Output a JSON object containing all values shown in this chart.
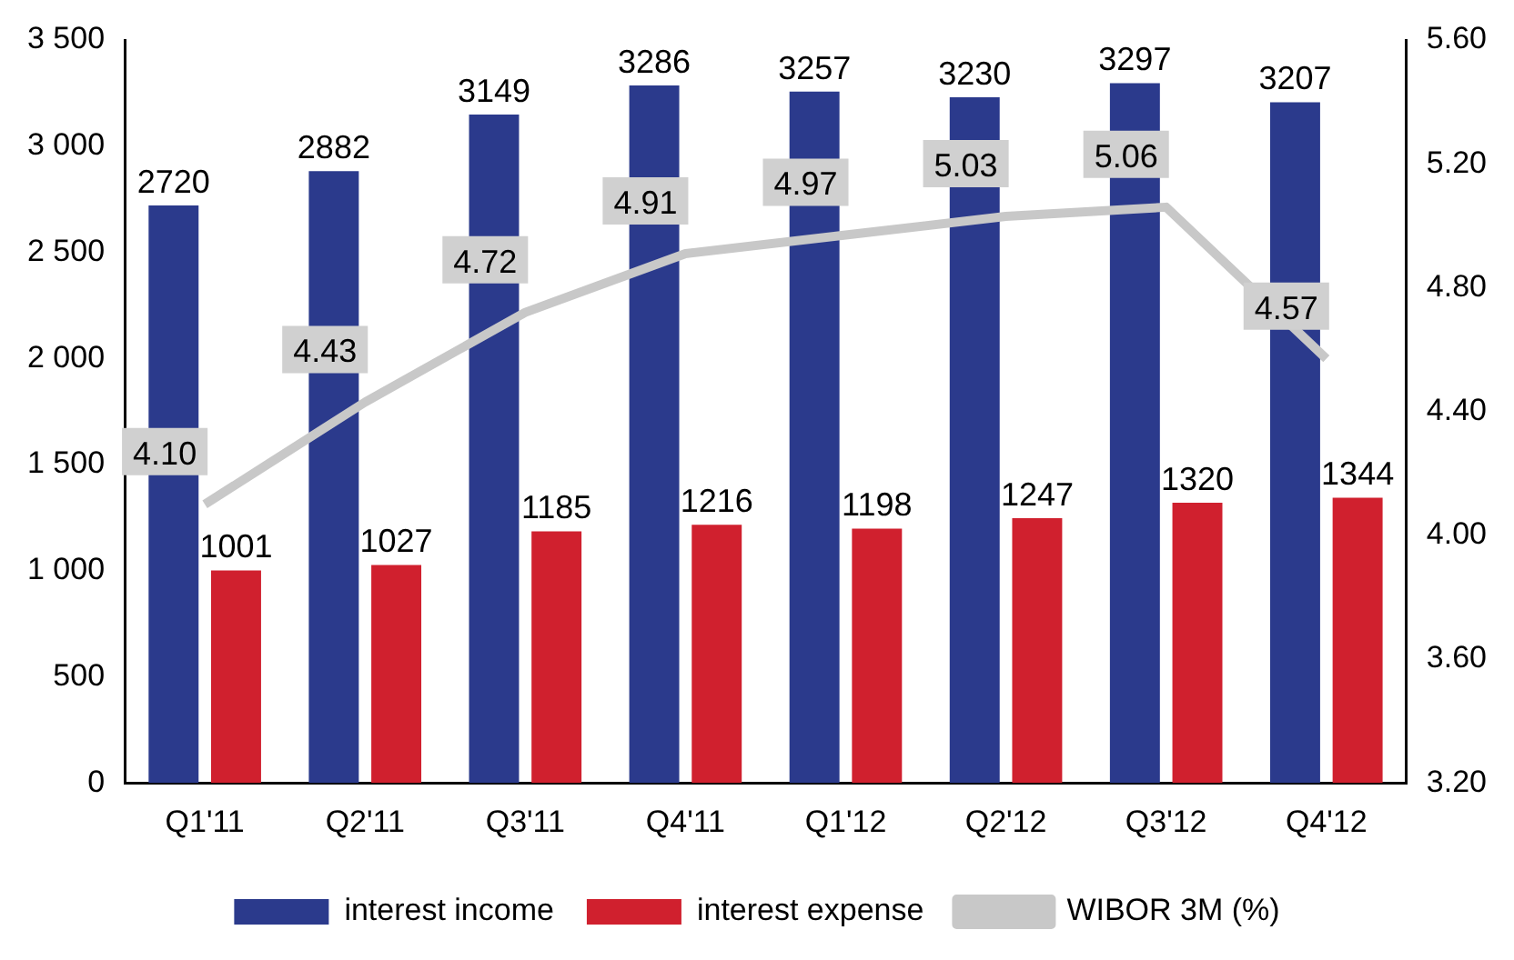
{
  "chart_data": {
    "type": "bar",
    "categories": [
      "Q1'11",
      "Q2'11",
      "Q3'11",
      "Q4'11",
      "Q1'12",
      "Q2'12",
      "Q3'12",
      "Q4'12"
    ],
    "series": [
      {
        "name": "interest income",
        "color": "#2b3a8c",
        "values": [
          2720,
          2882,
          3149,
          3286,
          3257,
          3230,
          3297,
          3207
        ]
      },
      {
        "name": "interest expense",
        "color": "#d0202e",
        "values": [
          1001,
          1027,
          1185,
          1216,
          1198,
          1247,
          1320,
          1344
        ]
      },
      {
        "name": "WIBOR 3M (%)",
        "type": "line",
        "axis": "y2",
        "color": "#c8c8c8",
        "values": [
          4.1,
          4.43,
          4.72,
          4.91,
          4.97,
          5.03,
          5.06,
          4.57
        ],
        "value_labels": [
          "4.10",
          "4.43",
          "4.72",
          "4.91",
          "4.97",
          "5.03",
          "5.06",
          "4.57"
        ]
      }
    ],
    "ylim": [
      0,
      3500
    ],
    "yticks": [
      0,
      500,
      {
        "value": 1000,
        "label": "1 000"
      },
      {
        "value": 1500,
        "label": "1 500"
      },
      {
        "value": 2000,
        "label": "2 000"
      },
      {
        "value": 2500,
        "label": "2 500"
      },
      {
        "value": 3000,
        "label": "3 000"
      },
      {
        "value": 3500,
        "label": "3 500"
      }
    ],
    "y2lim": [
      3.2,
      5.6
    ],
    "y2ticks": [
      {
        "value": 3.2,
        "label": "3.20"
      },
      {
        "value": 3.6,
        "label": "3.60"
      },
      {
        "value": 4.0,
        "label": "4.00"
      },
      {
        "value": 4.4,
        "label": "4.40"
      },
      {
        "value": 4.8,
        "label": "4.80"
      },
      {
        "value": 5.2,
        "label": "5.20"
      },
      {
        "value": 5.6,
        "label": "5.60"
      }
    ],
    "grid": false,
    "legend": "bottom",
    "data_labels": true
  }
}
